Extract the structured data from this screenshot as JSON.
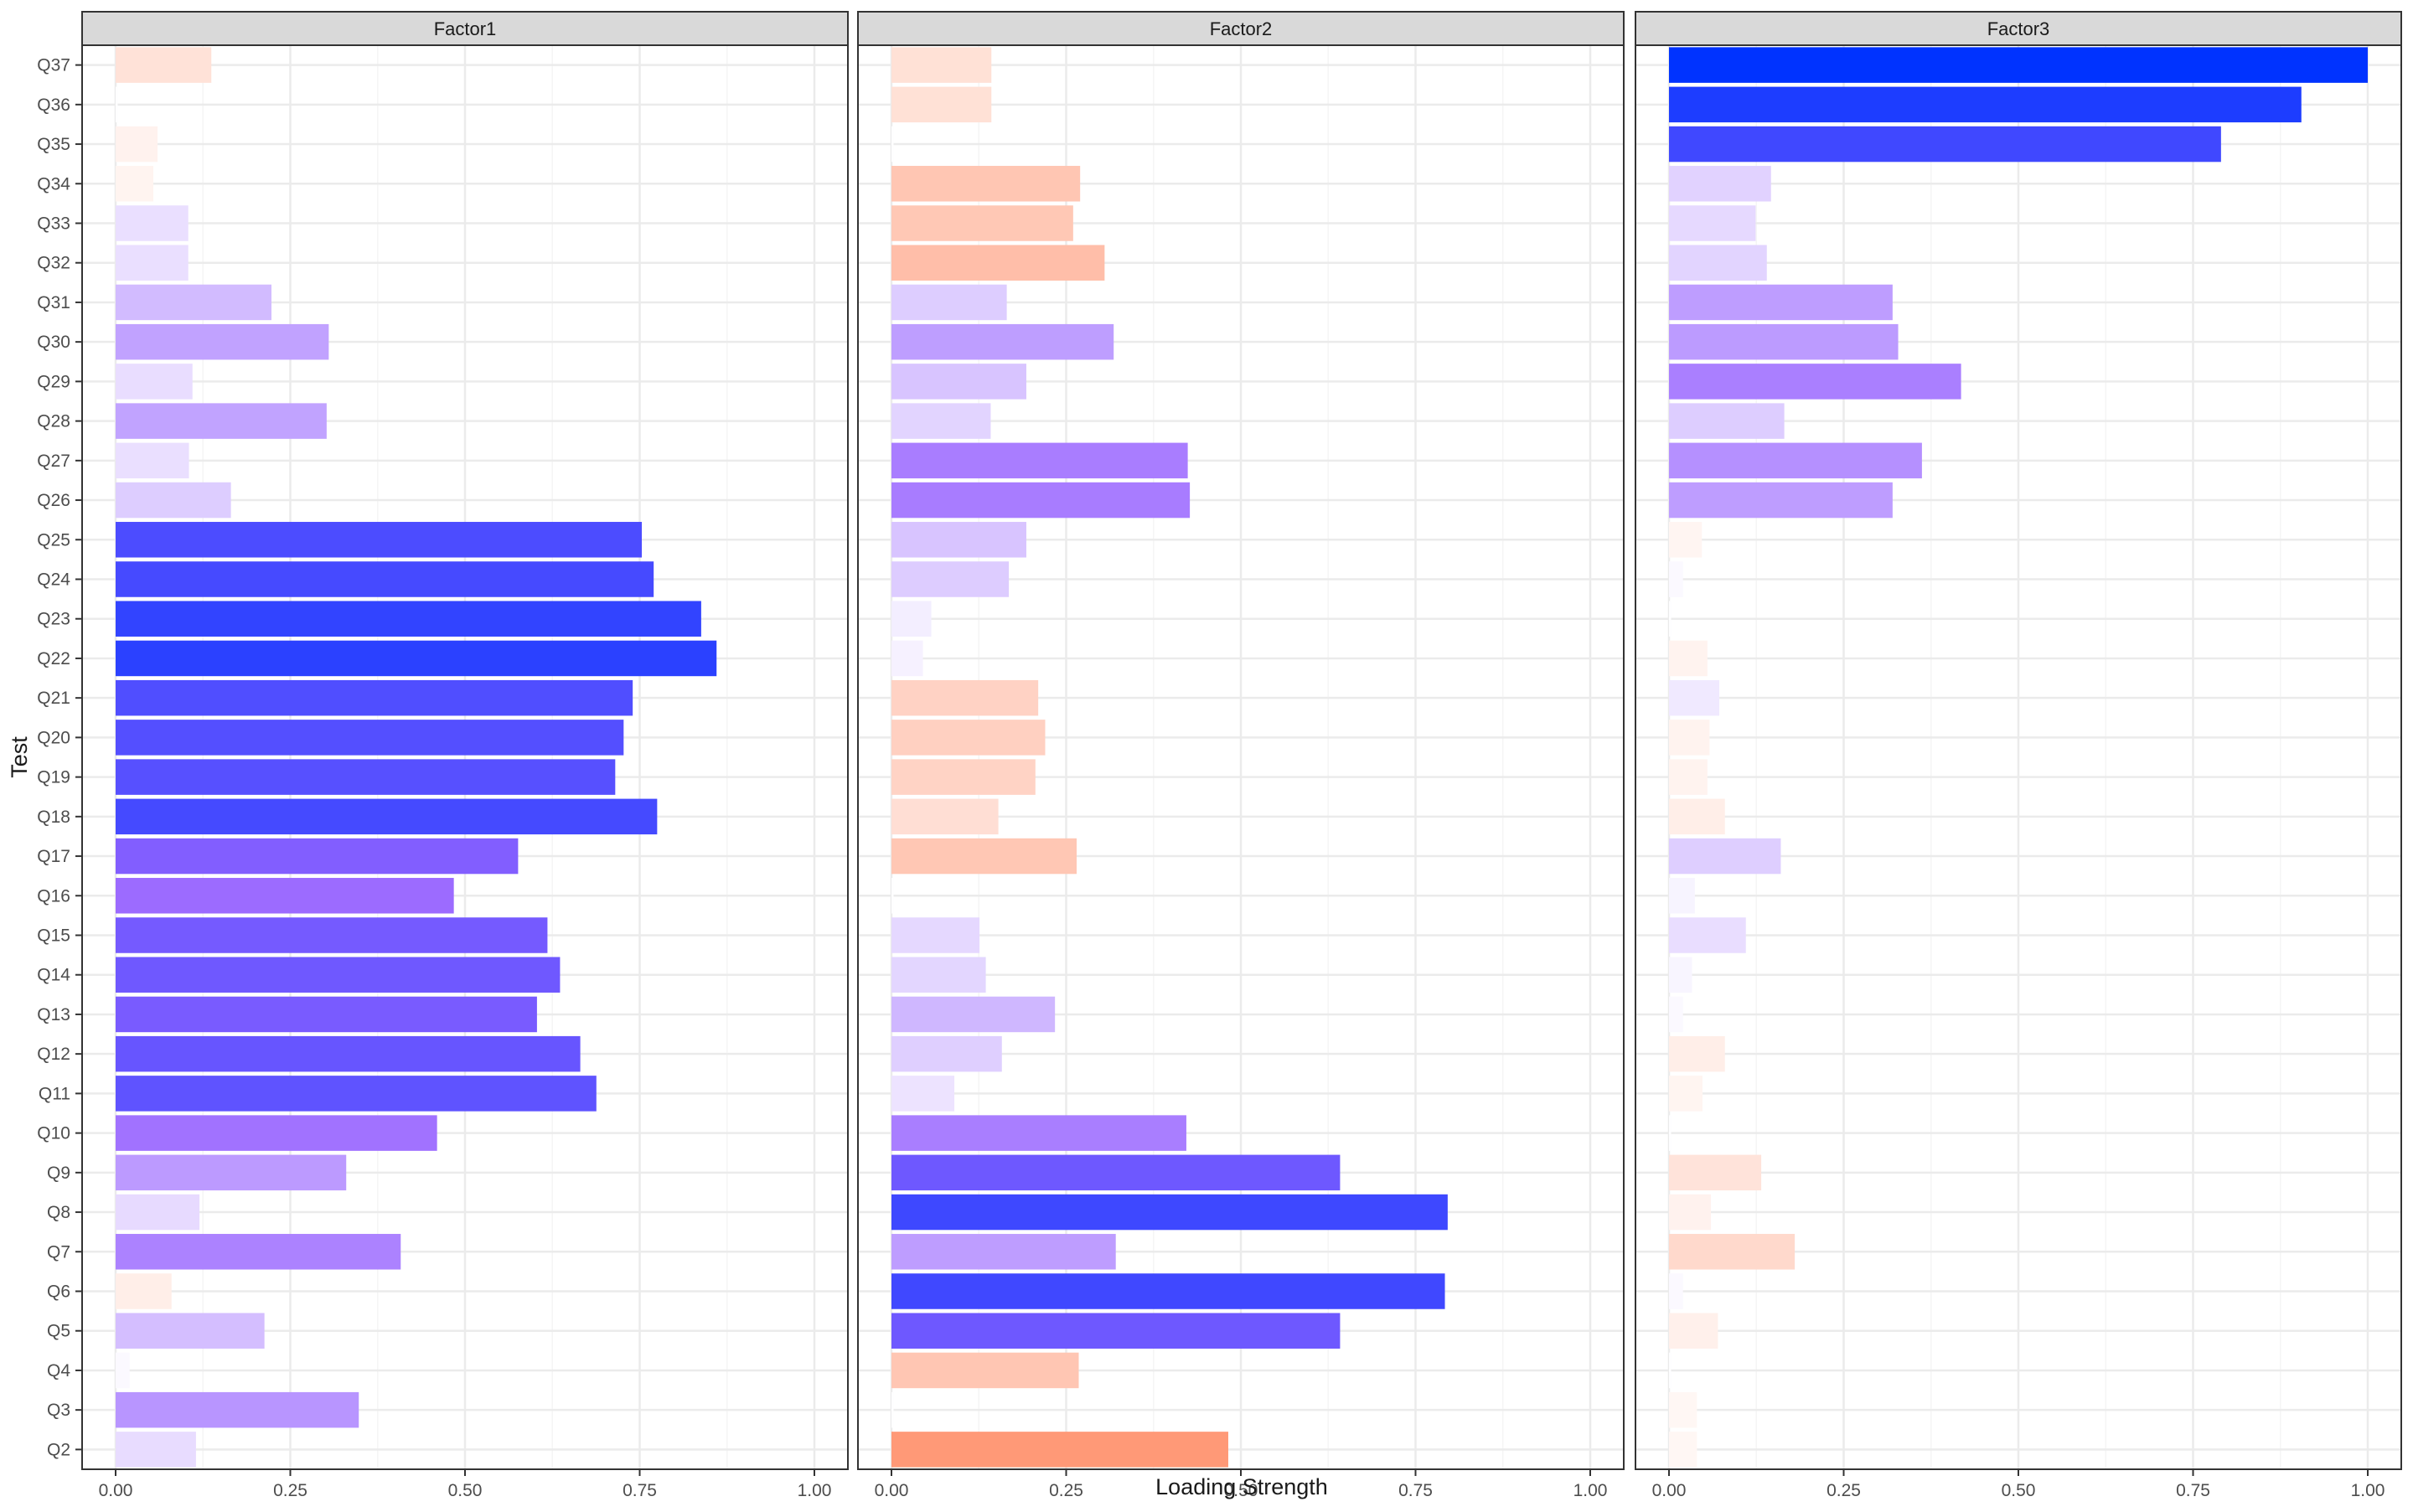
{
  "chart_data": {
    "type": "bar",
    "orientation": "horizontal",
    "xlabel": "Loading Strength",
    "ylabel": "Test",
    "xlim": [
      0,
      1
    ],
    "x_ticks": [
      "0.00",
      "0.25",
      "0.50",
      "0.75",
      "1.00"
    ],
    "grid": true,
    "legend": "none",
    "categories": [
      "Q2",
      "Q3",
      "Q4",
      "Q5",
      "Q6",
      "Q7",
      "Q8",
      "Q9",
      "Q10",
      "Q11",
      "Q12",
      "Q13",
      "Q14",
      "Q15",
      "Q16",
      "Q17",
      "Q18",
      "Q19",
      "Q20",
      "Q21",
      "Q22",
      "Q23",
      "Q24",
      "Q25",
      "Q26",
      "Q27",
      "Q28",
      "Q29",
      "Q30",
      "Q31",
      "Q32",
      "Q33",
      "Q34",
      "Q35",
      "Q36",
      "Q37"
    ],
    "series": [
      {
        "name": "Factor1",
        "values": [
          0.115,
          0.348,
          0.02,
          0.213,
          0.08,
          0.408,
          0.12,
          0.33,
          0.46,
          0.688,
          0.665,
          0.603,
          0.636,
          0.618,
          0.484,
          0.576,
          0.775,
          0.715,
          0.727,
          0.74,
          0.86,
          0.838,
          0.77,
          0.753,
          0.165,
          0.105,
          0.302,
          0.11,
          0.305,
          0.223,
          0.104,
          0.104,
          0.054,
          0.06,
          0.003,
          0.137
        ],
        "signs": [
          "+",
          "+",
          "+",
          "+",
          "-",
          "+",
          "+",
          "+",
          "+",
          "+",
          "+",
          "+",
          "+",
          "+",
          "+",
          "+",
          "+",
          "+",
          "+",
          "+",
          "+",
          "+",
          "+",
          "+",
          "+",
          "+",
          "+",
          "+",
          "+",
          "+",
          "+",
          "+",
          "-",
          "-",
          "+",
          "-"
        ]
      },
      {
        "name": "Factor2",
        "values": [
          0.482,
          0.003,
          0.268,
          0.642,
          0.792,
          0.321,
          0.796,
          0.642,
          0.422,
          0.09,
          0.158,
          0.234,
          0.135,
          0.126,
          0.003,
          0.265,
          0.153,
          0.206,
          0.22,
          0.21,
          0.045,
          0.057,
          0.168,
          0.193,
          0.427,
          0.424,
          0.142,
          0.193,
          0.318,
          0.165,
          0.305,
          0.26,
          0.27,
          0.003,
          0.143,
          0.143
        ],
        "signs": [
          "-",
          "+",
          "-",
          "+",
          "+",
          "+",
          "+",
          "+",
          "+",
          "+",
          "+",
          "+",
          "+",
          "+",
          "+",
          "-",
          "-",
          "-",
          "-",
          "-",
          "+",
          "+",
          "+",
          "+",
          "+",
          "+",
          "+",
          "+",
          "+",
          "+",
          "-",
          "-",
          "-",
          "+",
          "-",
          "-"
        ]
      },
      {
        "name": "Factor3",
        "values": [
          0.04,
          0.04,
          0.003,
          0.07,
          0.02,
          0.18,
          0.06,
          0.132,
          0.003,
          0.048,
          0.08,
          0.02,
          0.033,
          0.11,
          0.037,
          0.16,
          0.08,
          0.055,
          0.058,
          0.072,
          0.055,
          0.003,
          0.02,
          0.047,
          0.32,
          0.362,
          0.165,
          0.418,
          0.328,
          0.32,
          0.14,
          0.124,
          0.146,
          0.79,
          0.905,
          1.0
        ],
        "signs": [
          "-",
          "-",
          "+",
          "-",
          "+",
          "-",
          "-",
          "-",
          "+",
          "-",
          "-",
          "+",
          "+",
          "+",
          "+",
          "+",
          "-",
          "-",
          "-",
          "+",
          "-",
          "+",
          "+",
          "-",
          "+",
          "+",
          "+",
          "+",
          "+",
          "+",
          "+",
          "+",
          "+",
          "+",
          "+",
          "+"
        ]
      }
    ],
    "colors": {
      "positive_low": "#ffffff",
      "positive_mid": "#9966ff",
      "positive_high": "#0033ff",
      "negative_high": "#ff9977",
      "strip_bg": "#d9d9d9",
      "panel_border": "#333333",
      "grid_major": "#ebebeb",
      "grid_minor": "#f5f5f5"
    }
  }
}
